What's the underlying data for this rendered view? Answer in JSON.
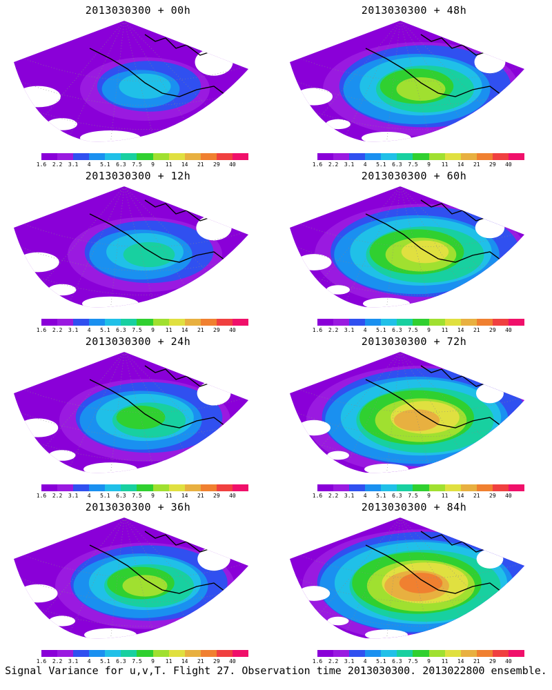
{
  "panels": [
    {
      "title": "2013030300 + 00h",
      "intensity": 0.2
    },
    {
      "title": "2013030300 + 48h",
      "intensity": 0.6
    },
    {
      "title": "2013030300 + 12h",
      "intensity": 0.35
    },
    {
      "title": "2013030300 + 60h",
      "intensity": 0.7
    },
    {
      "title": "2013030300 + 24h",
      "intensity": 0.45
    },
    {
      "title": "2013030300 + 72h",
      "intensity": 0.8
    },
    {
      "title": "2013030300 + 36h",
      "intensity": 0.5
    },
    {
      "title": "2013030300 + 84h",
      "intensity": 0.85
    }
  ],
  "colorbar": {
    "labels": [
      "1.6",
      "2.2",
      "3.1",
      "4",
      "5.1",
      "6.3",
      "7.5",
      "9",
      "11",
      "14",
      "21",
      "29",
      "40"
    ],
    "colors": [
      "#8a00d8",
      "#9a1ae0",
      "#3050f0",
      "#1a90f0",
      "#20c0e8",
      "#18d0a0",
      "#30d030",
      "#a0e030",
      "#e0e040",
      "#e8b040",
      "#f08030",
      "#f04040",
      "#f0106a"
    ]
  },
  "caption": "Signal Variance for u,v,T. Flight 27. Observation time 2013030300. 2013022800 ensemble."
}
